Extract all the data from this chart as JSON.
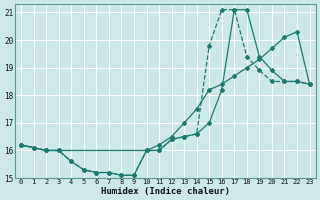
{
  "title": "",
  "xlabel": "Humidex (Indice chaleur)",
  "ylabel": "",
  "bg_color": "#cce8e8",
  "line_color": "#1a7a6e",
  "grid_color": "#ffffff",
  "xlim": [
    -0.5,
    23.5
  ],
  "ylim": [
    15,
    21.3
  ],
  "yticks": [
    15,
    16,
    17,
    18,
    19,
    20,
    21
  ],
  "xticks": [
    0,
    1,
    2,
    3,
    4,
    5,
    6,
    7,
    8,
    9,
    10,
    11,
    12,
    13,
    14,
    15,
    16,
    17,
    18,
    19,
    20,
    21,
    22,
    23
  ],
  "line1_x": [
    0,
    1,
    2,
    3,
    10,
    11,
    12,
    13,
    14,
    15,
    16,
    17,
    18,
    19,
    20,
    21,
    22,
    23
  ],
  "line1_y": [
    16.2,
    16.1,
    16.0,
    16.0,
    16.0,
    16.2,
    16.5,
    17.0,
    17.5,
    18.2,
    18.4,
    18.7,
    19.0,
    19.3,
    19.7,
    20.1,
    20.3,
    18.4
  ],
  "line2_x": [
    0,
    1,
    2,
    3,
    4,
    5,
    6,
    7,
    8,
    9,
    10,
    11,
    12,
    13,
    14,
    15,
    16,
    17,
    18,
    19,
    20,
    21,
    22,
    23
  ],
  "line2_y": [
    16.2,
    16.1,
    16.0,
    16.0,
    15.6,
    15.3,
    15.2,
    15.2,
    15.1,
    15.1,
    16.0,
    16.0,
    16.4,
    16.5,
    16.6,
    19.8,
    21.1,
    21.1,
    19.4,
    18.9,
    18.5,
    18.5,
    18.5,
    18.4
  ],
  "line3_x": [
    0,
    1,
    2,
    3,
    4,
    5,
    6,
    7,
    8,
    9,
    10,
    11,
    12,
    13,
    14,
    15,
    16,
    17,
    18,
    19,
    20,
    21,
    22,
    23
  ],
  "line3_y": [
    16.2,
    16.1,
    16.0,
    16.0,
    15.6,
    15.3,
    15.2,
    15.2,
    15.1,
    15.1,
    16.0,
    16.0,
    16.4,
    16.5,
    16.6,
    17.0,
    18.2,
    21.1,
    21.1,
    19.4,
    18.9,
    18.5,
    18.5,
    18.4
  ]
}
